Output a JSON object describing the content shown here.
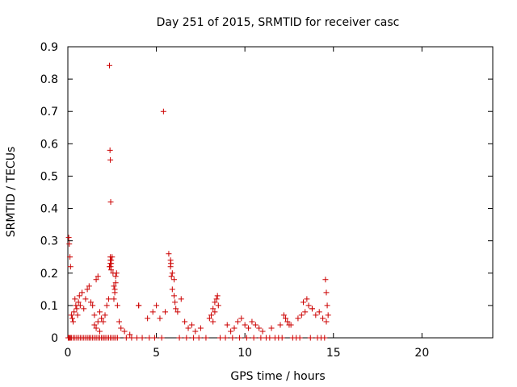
{
  "chart_data": {
    "type": "scatter",
    "title": "Day 251 of 2015, SRMTID for receiver casc",
    "xlabel": "GPS time / hours",
    "ylabel": "SRMTID / TECUs",
    "xlim": [
      0,
      24
    ],
    "ylim": [
      0,
      0.9
    ],
    "xticks": [
      0,
      5,
      10,
      15,
      20
    ],
    "xtick_labels": [
      "0",
      "5",
      "10",
      "15",
      "20"
    ],
    "yticks": [
      0,
      0.1,
      0.2,
      0.3,
      0.4,
      0.5,
      0.6,
      0.7,
      0.8,
      0.9
    ],
    "ytick_labels": [
      "0",
      "0.1",
      "0.2",
      "0.3",
      "0.4",
      "0.5",
      "0.6",
      "0.7",
      "0.8",
      "0.9"
    ],
    "grid": false,
    "marker": "plus",
    "marker_color": "#cc0000",
    "series": [
      {
        "name": "SRMTID",
        "x": [
          0.05,
          0.08,
          0.12,
          0.15,
          0.2,
          0.25,
          0.3,
          0.35,
          0.4,
          0.45,
          0.5,
          0.55,
          0.6,
          0.65,
          0.7,
          0.8,
          0.9,
          1.0,
          1.1,
          1.2,
          1.3,
          1.4,
          1.5,
          1.6,
          1.7,
          1.8,
          1.9,
          2.0,
          2.1,
          2.2,
          2.3,
          2.35,
          2.4,
          2.45,
          2.5,
          2.55,
          2.6,
          2.65,
          2.7,
          2.8,
          2.9,
          3.0,
          3.2,
          3.5,
          4.0,
          4.5,
          4.8,
          5.0,
          5.2,
          5.5,
          5.7,
          5.8,
          5.9,
          6.0,
          6.2,
          6.4,
          6.6,
          6.8,
          7.0,
          7.2,
          7.5,
          8.0,
          8.2,
          8.3,
          8.5,
          9.0,
          9.2,
          9.4,
          9.6,
          9.8,
          10.0,
          10.2,
          10.4,
          10.6,
          10.8,
          11.0,
          11.5,
          12.0,
          12.2,
          12.4,
          12.6,
          13.0,
          13.2,
          13.4,
          13.6,
          13.8,
          14.0,
          14.2,
          14.4,
          14.6,
          14.7,
          0.02,
          0.05,
          0.08,
          0.1,
          0.15,
          0.2,
          0.3,
          0.4,
          0.5,
          0.6,
          0.7,
          0.8,
          0.9,
          1.0,
          1.1,
          1.2,
          1.3,
          1.4,
          1.5,
          1.6,
          1.7,
          1.8,
          1.9,
          2.0,
          2.1,
          2.2,
          2.3,
          2.4,
          2.5,
          2.6,
          2.7,
          2.8,
          1.5,
          1.6,
          1.7,
          1.8,
          2.6,
          2.65,
          2.7,
          2.75,
          2.35,
          2.38,
          2.4,
          2.42,
          2.45,
          2.4,
          2.42,
          2.44,
          2.4,
          5.4,
          5.8,
          5.82,
          5.85,
          5.9,
          6.0,
          6.05,
          6.1,
          8.1,
          8.2,
          8.3,
          8.4,
          8.45,
          12.3,
          12.5,
          13.3,
          13.5,
          13.8,
          14.55,
          14.6,
          14.65,
          4.0,
          0.3,
          1.2,
          2.0,
          3.3,
          3.6,
          3.9,
          4.2,
          4.6,
          4.9,
          5.3,
          6.3,
          6.7,
          7.1,
          7.4,
          7.8,
          8.6,
          8.9,
          9.3,
          9.7,
          10.1,
          10.5,
          10.9,
          11.2,
          11.4,
          11.7,
          11.9,
          12.1,
          12.7,
          12.9,
          13.1,
          13.7,
          14.1,
          14.3,
          14.5
        ],
        "y": [
          0.31,
          0.29,
          0.25,
          0.22,
          0.07,
          0.06,
          0.05,
          0.08,
          0.12,
          0.1,
          0.09,
          0.07,
          0.11,
          0.13,
          0.1,
          0.14,
          0.09,
          0.12,
          0.15,
          0.16,
          0.11,
          0.1,
          0.07,
          0.18,
          0.19,
          0.08,
          0.06,
          0.05,
          0.07,
          0.1,
          0.12,
          0.22,
          0.23,
          0.24,
          0.25,
          0.2,
          0.16,
          0.14,
          0.17,
          0.1,
          0.05,
          0.03,
          0.02,
          0.01,
          0.1,
          0.06,
          0.08,
          0.1,
          0.06,
          0.08,
          0.26,
          0.22,
          0.2,
          0.18,
          0.08,
          0.12,
          0.05,
          0.03,
          0.04,
          0.02,
          0.03,
          0.06,
          0.05,
          0.08,
          0.1,
          0.04,
          0.02,
          0.03,
          0.05,
          0.06,
          0.04,
          0.03,
          0.05,
          0.04,
          0.03,
          0.02,
          0.03,
          0.04,
          0.07,
          0.05,
          0.04,
          0.06,
          0.07,
          0.08,
          0.1,
          0.09,
          0.07,
          0.08,
          0.06,
          0.05,
          0.07,
          0.0,
          0.0,
          0.0,
          0.0,
          0.0,
          0.0,
          0.0,
          0.0,
          0.0,
          0.0,
          0.0,
          0.0,
          0.0,
          0.0,
          0.0,
          0.0,
          0.0,
          0.0,
          0.0,
          0.0,
          0.0,
          0.0,
          0.0,
          0.0,
          0.0,
          0.0,
          0.0,
          0.0,
          0.0,
          0.0,
          0.0,
          0.0,
          0.04,
          0.03,
          0.05,
          0.02,
          0.12,
          0.15,
          0.19,
          0.2,
          0.842,
          0.58,
          0.55,
          0.42,
          0.23,
          0.24,
          0.22,
          0.21,
          0.25,
          0.7,
          0.24,
          0.23,
          0.19,
          0.15,
          0.13,
          0.11,
          0.09,
          0.07,
          0.09,
          0.11,
          0.12,
          0.13,
          0.06,
          0.04,
          0.11,
          0.12,
          0.09,
          0.18,
          0.14,
          0.1,
          0.1,
          0.0,
          0.0,
          0.0,
          0.0,
          0.0,
          0.0,
          0.0,
          0.0,
          0.0,
          0.0,
          0.0,
          0.0,
          0.0,
          0.0,
          0.0,
          0.0,
          0.0,
          0.0,
          0.0,
          0.0,
          0.0,
          0.0,
          0.0,
          0.0,
          0.0,
          0.0,
          0.0,
          0.0,
          0.0,
          0.0,
          0.0,
          0.0,
          0.0,
          0.0
        ]
      }
    ]
  }
}
